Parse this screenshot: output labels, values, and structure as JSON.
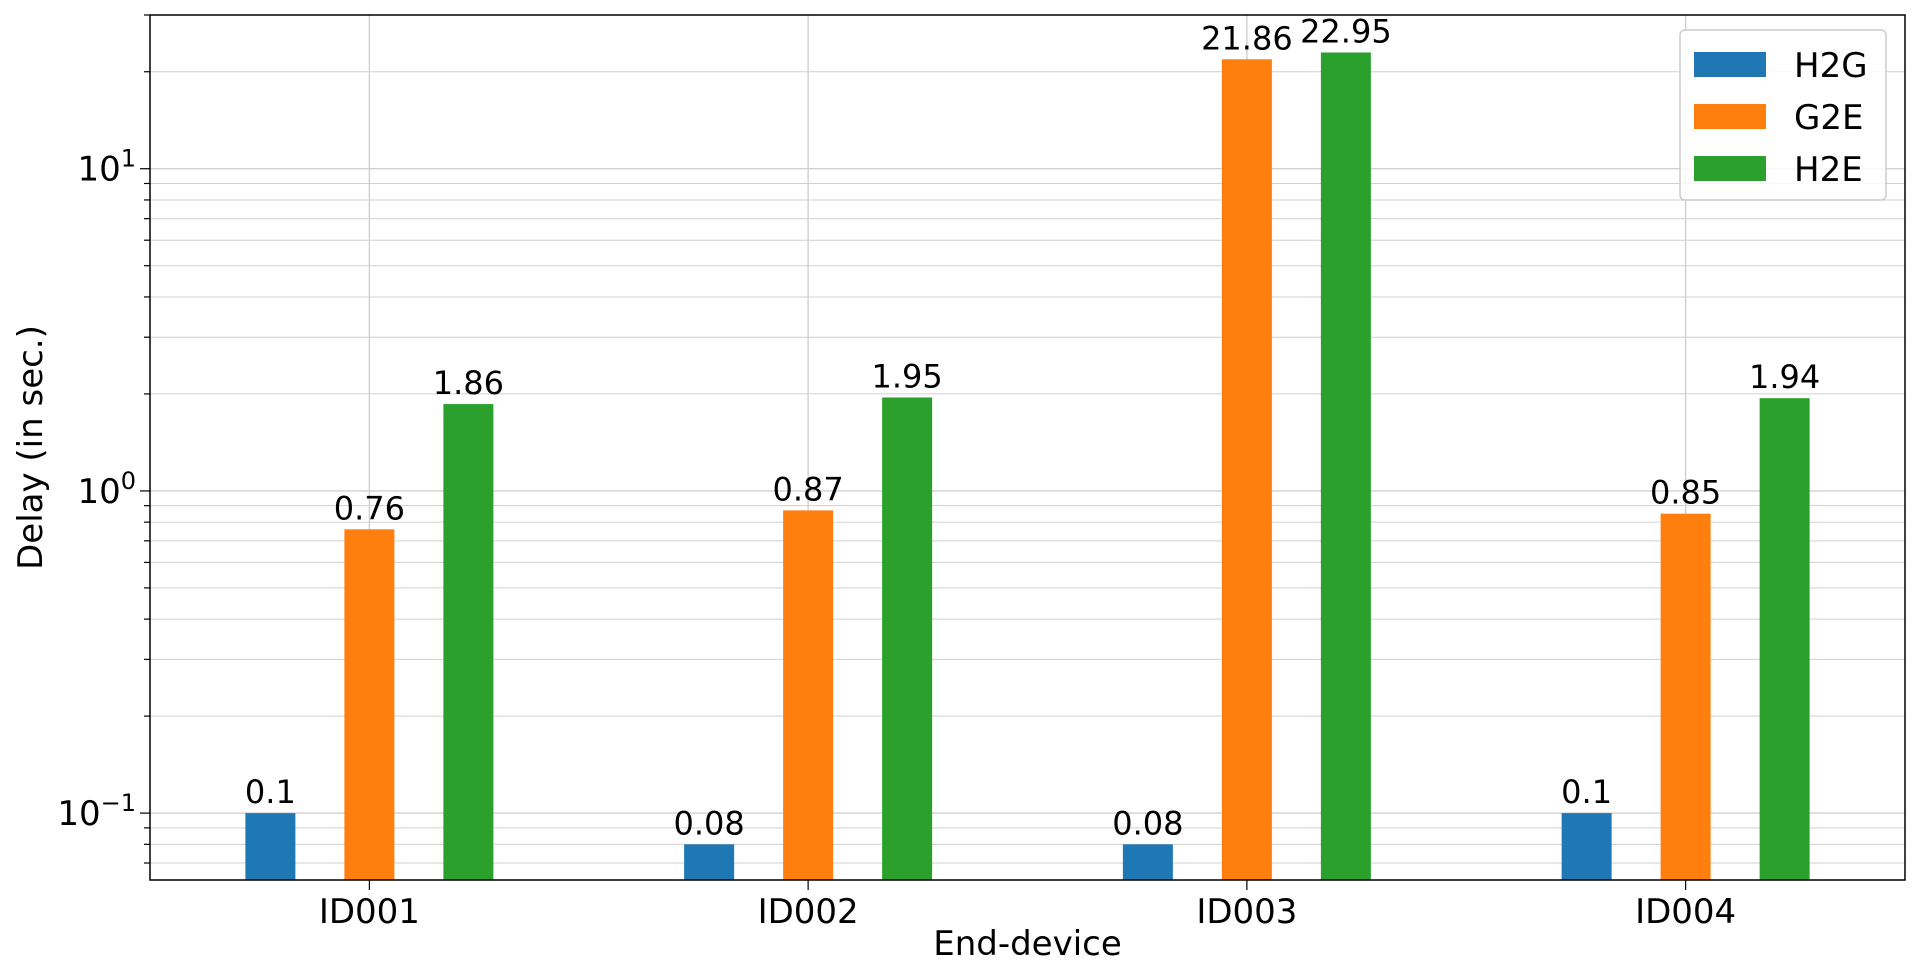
{
  "chart_data": {
    "type": "bar",
    "title": "",
    "xlabel": "End-device",
    "ylabel": "Delay (in sec.)",
    "yscale": "log",
    "ylim": [
      0.062,
      30
    ],
    "grid": true,
    "legend_position": "top-right",
    "categories": [
      "ID001",
      "ID002",
      "ID003",
      "ID004"
    ],
    "yticks": [
      {
        "value": 0.1,
        "base": "10",
        "exp": "−1"
      },
      {
        "value": 1,
        "base": "10",
        "exp": "0"
      },
      {
        "value": 10,
        "base": "10",
        "exp": "1"
      }
    ],
    "series": [
      {
        "name": "H2G",
        "color": "#1f77b4",
        "values": [
          0.1,
          0.08,
          0.08,
          0.1
        ],
        "labels": [
          "0.1",
          "0.08",
          "0.08",
          "0.1"
        ]
      },
      {
        "name": "G2E",
        "color": "#ff7f0e",
        "values": [
          0.76,
          0.87,
          21.86,
          0.85
        ],
        "labels": [
          "0.76",
          "0.87",
          "21.86",
          "0.85"
        ]
      },
      {
        "name": "H2E",
        "color": "#2ca02c",
        "values": [
          1.86,
          1.95,
          22.95,
          1.94
        ],
        "labels": [
          "1.86",
          "1.95",
          "22.95",
          "1.94"
        ]
      }
    ]
  }
}
